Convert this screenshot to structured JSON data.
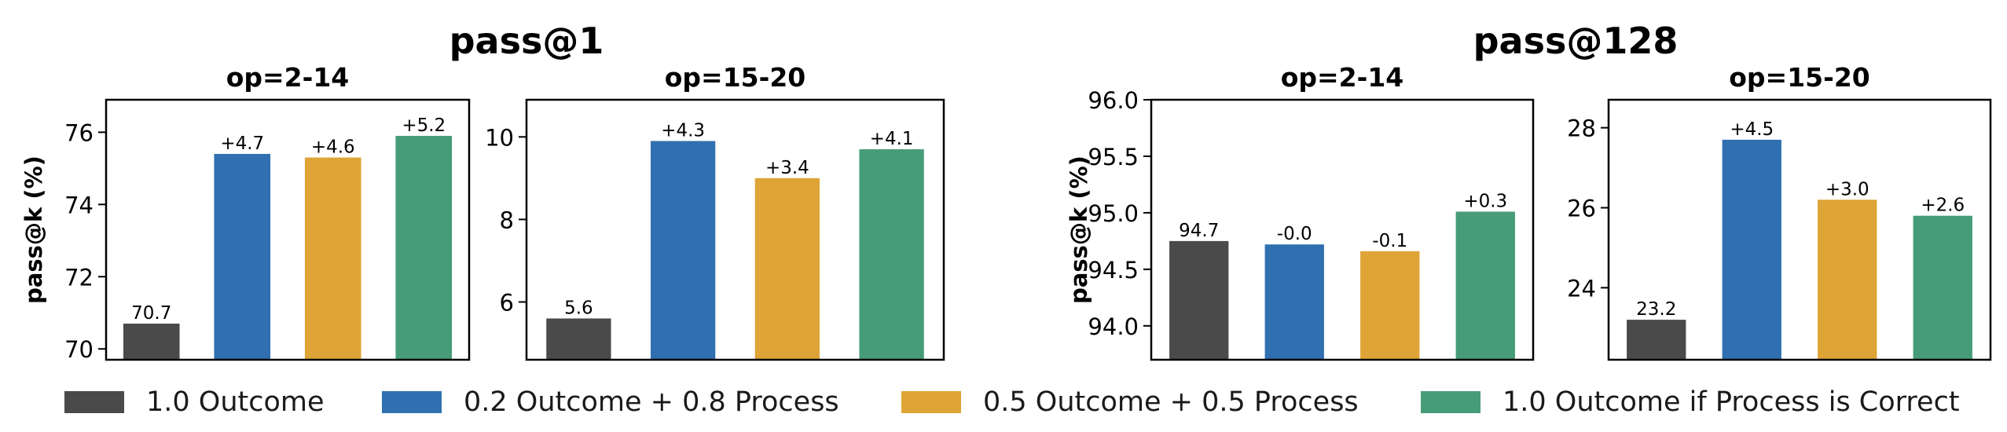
{
  "figure": {
    "colors": [
      "#4a4a4a",
      "#3070b0",
      "#dea436",
      "#469c77"
    ]
  },
  "chart_data": [
    {
      "type": "bar",
      "group_title": "pass@1",
      "title": "op=2-14",
      "ylabel": "pass@k (%)",
      "categories": [
        "1.0 Outcome",
        "0.2 Outcome + 0.8 Process",
        "0.5 Outcome + 0.5 Process",
        "1.0 Outcome if Process is Correct"
      ],
      "values": [
        70.7,
        75.4,
        75.3,
        75.9
      ],
      "labels": [
        "70.7",
        "+4.7",
        "+4.6",
        "+5.2"
      ],
      "ylim": [
        69.7,
        76.9
      ],
      "yticks": [
        70,
        72,
        74,
        76
      ],
      "yticklabels": [
        "70",
        "72",
        "74",
        "76"
      ]
    },
    {
      "type": "bar",
      "group_title": "pass@1",
      "title": "op=15-20",
      "ylabel": "",
      "categories": [
        "1.0 Outcome",
        "0.2 Outcome + 0.8 Process",
        "0.5 Outcome + 0.5 Process",
        "1.0 Outcome if Process is Correct"
      ],
      "values": [
        5.6,
        9.9,
        9.0,
        9.7
      ],
      "labels": [
        "5.6",
        "+4.3",
        "+3.4",
        "+4.1"
      ],
      "ylim": [
        4.6,
        10.9
      ],
      "yticks": [
        6,
        8,
        10
      ],
      "yticklabels": [
        "6",
        "8",
        "10"
      ]
    },
    {
      "type": "bar",
      "group_title": "pass@128",
      "title": "op=2-14",
      "ylabel": "pass@k (%)",
      "categories": [
        "1.0 Outcome",
        "0.2 Outcome + 0.8 Process",
        "0.5 Outcome + 0.5 Process",
        "1.0 Outcome if Process is Correct"
      ],
      "values": [
        94.75,
        94.72,
        94.66,
        95.01
      ],
      "labels": [
        "94.7",
        "-0.0",
        "-0.1",
        "+0.3"
      ],
      "ylim": [
        93.7,
        96.0
      ],
      "yticks": [
        94.0,
        94.5,
        95.0,
        95.5,
        96.0
      ],
      "yticklabels": [
        "94.0",
        "94.5",
        "95.0",
        "95.5",
        "96.0"
      ]
    },
    {
      "type": "bar",
      "group_title": "pass@128",
      "title": "op=15-20",
      "ylabel": "",
      "categories": [
        "1.0 Outcome",
        "0.2 Outcome + 0.8 Process",
        "0.5 Outcome + 0.5 Process",
        "1.0 Outcome if Process is Correct"
      ],
      "values": [
        23.2,
        27.7,
        26.2,
        25.8
      ],
      "labels": [
        "23.2",
        "+4.5",
        "+3.0",
        "+2.6"
      ],
      "ylim": [
        22.2,
        28.7
      ],
      "yticks": [
        24,
        26,
        28
      ],
      "yticklabels": [
        "24",
        "26",
        "28"
      ]
    }
  ],
  "legend": {
    "items": [
      {
        "label": "1.0 Outcome",
        "color": "#4a4a4a"
      },
      {
        "label": "0.2 Outcome + 0.8 Process",
        "color": "#3070b0"
      },
      {
        "label": "0.5 Outcome + 0.5 Process",
        "color": "#dea436"
      },
      {
        "label": "1.0 Outcome if Process is Correct",
        "color": "#469c77"
      }
    ]
  }
}
